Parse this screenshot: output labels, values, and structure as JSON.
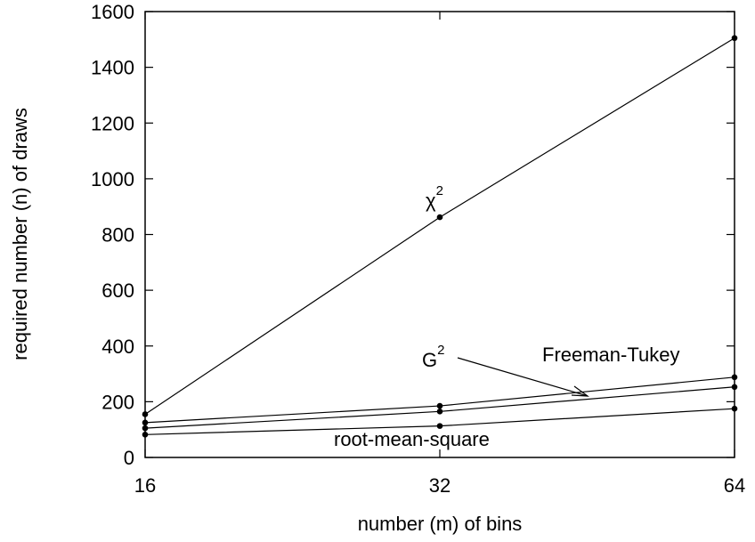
{
  "chart_data": {
    "type": "line",
    "xscale": "log2",
    "x": [
      16,
      32,
      64
    ],
    "xticks": [
      "16",
      "32",
      "64"
    ],
    "xlim": [
      16,
      64
    ],
    "ylim": [
      0,
      1600
    ],
    "yticks": [
      "0",
      "200",
      "400",
      "600",
      "800",
      "1000",
      "1200",
      "1400",
      "1600"
    ],
    "xlabel": "number (m) of bins",
    "ylabel": "required number (n) of draws",
    "grid": false,
    "series": [
      {
        "name": "χ2",
        "label_main": "χ",
        "label_sup": "2",
        "values": [
          155,
          862,
          1505
        ]
      },
      {
        "name": "Freeman-Tukey",
        "label_main": "Freeman-Tukey",
        "label_sup": "",
        "values": [
          125,
          185,
          288
        ]
      },
      {
        "name": "G2",
        "label_main": "G",
        "label_sup": "2",
        "values": [
          105,
          165,
          253
        ]
      },
      {
        "name": "root-mean-square",
        "label_main": "root-mean-square",
        "label_sup": "",
        "values": [
          82,
          113,
          175
        ]
      }
    ]
  }
}
